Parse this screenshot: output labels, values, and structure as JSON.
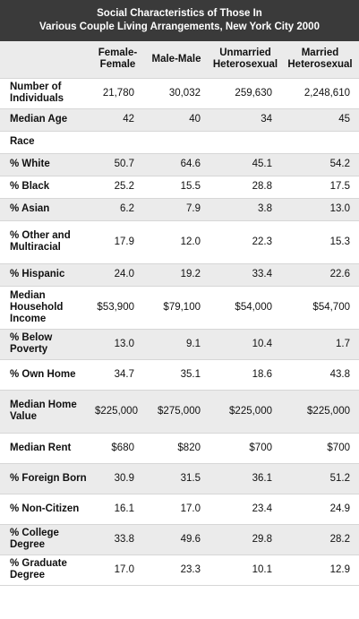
{
  "title_line1": "Social Characteristics of Those In",
  "title_line2": "Various Couple Living Arrangements, New York City 2000",
  "columns": [
    "Female-Female",
    "Male-Male",
    "Unmarried Heterosexual",
    "Married Heterosexual"
  ],
  "rows": [
    {
      "label": "Number of Individuals",
      "values": [
        "21,780",
        "30,032",
        "259,630",
        "2,248,610"
      ]
    },
    {
      "label": "Median Age",
      "values": [
        "42",
        "40",
        "34",
        "45"
      ]
    },
    {
      "label": "Race",
      "values": [
        "",
        "",
        "",
        ""
      ]
    },
    {
      "label": "% White",
      "values": [
        "50.7",
        "64.6",
        "45.1",
        "54.2"
      ]
    },
    {
      "label": "% Black",
      "values": [
        "25.2",
        "15.5",
        "28.8",
        "17.5"
      ]
    },
    {
      "label": "% Asian",
      "values": [
        "6.2",
        "7.9",
        "3.8",
        "13.0"
      ]
    },
    {
      "label": "% Other and Multiracial",
      "values": [
        "17.9",
        "12.0",
        "22.3",
        "15.3"
      ]
    },
    {
      "label": "% Hispanic",
      "values": [
        "24.0",
        "19.2",
        "33.4",
        "22.6"
      ]
    },
    {
      "label": "Median Household Income",
      "values": [
        "$53,900",
        "$79,100",
        "$54,000",
        "$54,700"
      ]
    },
    {
      "label": "% Below Poverty",
      "values": [
        "13.0",
        "9.1",
        "10.4",
        "1.7"
      ]
    },
    {
      "label": "% Own Home",
      "values": [
        "34.7",
        "35.1",
        "18.6",
        "43.8"
      ]
    },
    {
      "label": "Median Home Value",
      "values": [
        "$225,000",
        "$275,000",
        "$225,000",
        "$225,000"
      ]
    },
    {
      "label": "Median Rent",
      "values": [
        "$680",
        "$820",
        "$700",
        "$700"
      ]
    },
    {
      "label": "% Foreign Born",
      "values": [
        "30.9",
        "31.5",
        "36.1",
        "51.2"
      ]
    },
    {
      "label": "% Non-Citizen",
      "values": [
        "16.1",
        "17.0",
        "23.4",
        "24.9"
      ]
    },
    {
      "label": "% College Degree",
      "values": [
        "33.8",
        "49.6",
        "29.8",
        "28.2"
      ]
    },
    {
      "label": "% Graduate Degree",
      "values": [
        "17.0",
        "23.3",
        "10.1",
        "12.9"
      ]
    }
  ]
}
